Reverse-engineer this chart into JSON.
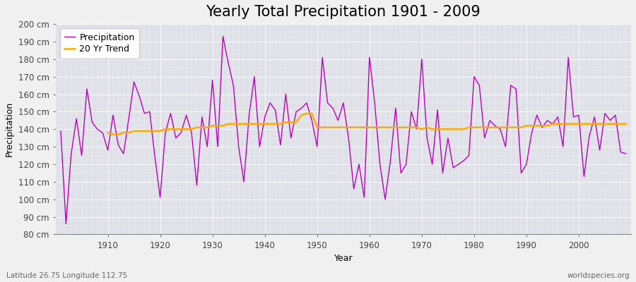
{
  "title": "Yearly Total Precipitation 1901 - 2009",
  "xlabel": "Year",
  "ylabel": "Precipitation",
  "bottom_left_label": "Latitude 26.75 Longitude 112.75",
  "bottom_right_label": "worldspecies.org",
  "ylim": [
    80,
    200
  ],
  "ytick_step": 10,
  "years": [
    1901,
    1902,
    1903,
    1904,
    1905,
    1906,
    1907,
    1908,
    1909,
    1910,
    1911,
    1912,
    1913,
    1914,
    1915,
    1916,
    1917,
    1918,
    1919,
    1920,
    1921,
    1922,
    1923,
    1924,
    1925,
    1926,
    1927,
    1928,
    1929,
    1930,
    1931,
    1932,
    1933,
    1934,
    1935,
    1936,
    1937,
    1938,
    1939,
    1940,
    1941,
    1942,
    1943,
    1944,
    1945,
    1946,
    1947,
    1948,
    1949,
    1950,
    1951,
    1952,
    1953,
    1954,
    1955,
    1956,
    1957,
    1958,
    1959,
    1960,
    1961,
    1962,
    1963,
    1964,
    1965,
    1966,
    1967,
    1968,
    1969,
    1970,
    1971,
    1972,
    1973,
    1974,
    1975,
    1976,
    1977,
    1978,
    1979,
    1980,
    1981,
    1982,
    1983,
    1984,
    1985,
    1986,
    1987,
    1988,
    1989,
    1990,
    1991,
    1992,
    1993,
    1994,
    1995,
    1996,
    1997,
    1998,
    1999,
    2000,
    2001,
    2002,
    2003,
    2004,
    2005,
    2006,
    2007,
    2008,
    2009
  ],
  "precip": [
    139,
    86,
    126,
    146,
    125,
    163,
    144,
    140,
    138,
    128,
    148,
    131,
    126,
    146,
    167,
    159,
    149,
    150,
    124,
    101,
    138,
    149,
    135,
    138,
    148,
    138,
    108,
    147,
    130,
    168,
    130,
    193,
    178,
    165,
    130,
    110,
    148,
    170,
    130,
    147,
    155,
    151,
    131,
    160,
    135,
    150,
    152,
    155,
    145,
    130,
    181,
    155,
    152,
    145,
    155,
    135,
    106,
    120,
    101,
    181,
    155,
    120,
    100,
    122,
    152,
    115,
    120,
    150,
    140,
    180,
    135,
    120,
    151,
    115,
    135,
    118,
    120,
    122,
    125,
    170,
    165,
    135,
    145,
    142,
    140,
    130,
    165,
    163,
    115,
    120,
    138,
    148,
    141,
    145,
    143,
    147,
    130,
    181,
    147,
    148,
    113,
    136,
    147,
    128,
    149,
    145,
    148,
    127,
    126
  ],
  "trend_years": [
    1910,
    1911,
    1912,
    1913,
    1914,
    1915,
    1916,
    1917,
    1918,
    1919,
    1920,
    1921,
    1922,
    1923,
    1924,
    1925,
    1926,
    1927,
    1928,
    1929,
    1930,
    1931,
    1932,
    1933,
    1934,
    1935,
    1936,
    1937,
    1938,
    1939,
    1940,
    1941,
    1942,
    1943,
    1944,
    1945,
    1946,
    1947,
    1948,
    1949,
    1950,
    1951,
    1952,
    1953,
    1954,
    1955,
    1956,
    1957,
    1958,
    1959,
    1960,
    1961,
    1962,
    1963,
    1964,
    1965,
    1966,
    1967,
    1968,
    1969,
    1970,
    1971,
    1972,
    1973,
    1974,
    1975,
    1976,
    1977,
    1978,
    1979,
    1980,
    1981,
    1982,
    1983,
    1984,
    1985,
    1986,
    1987,
    1988,
    1989,
    1990,
    1991,
    1992,
    1993,
    1994,
    1995,
    1996,
    1997,
    1998,
    1999,
    2000,
    2001,
    2002,
    2003,
    2004,
    2005,
    2006,
    2007,
    2008,
    2009
  ],
  "trend": [
    138,
    137,
    137,
    138,
    138,
    139,
    139,
    139,
    139,
    139,
    139,
    140,
    140,
    140,
    140,
    140,
    140,
    141,
    141,
    141,
    142,
    142,
    142,
    143,
    143,
    143,
    143,
    143,
    143,
    143,
    143,
    143,
    143,
    143,
    144,
    144,
    144,
    148,
    149,
    149,
    141,
    141,
    141,
    141,
    141,
    141,
    141,
    141,
    141,
    141,
    141,
    141,
    141,
    141,
    141,
    141,
    141,
    141,
    141,
    141,
    140,
    141,
    140,
    140,
    140,
    140,
    140,
    140,
    140,
    141,
    141,
    141,
    141,
    141,
    141,
    141,
    141,
    141,
    141,
    141,
    142,
    142,
    142,
    142,
    142,
    143,
    143,
    143,
    143,
    143,
    143,
    143,
    143,
    143,
    143,
    143,
    143,
    143,
    143,
    143
  ],
  "precip_color": "#bb00bb",
  "trend_color": "#ffaa00",
  "background_color": "#f0f0f0",
  "plot_bg_color": "#e0e0e8",
  "grid_color": "#ffffff",
  "title_fontsize": 15,
  "label_fontsize": 9,
  "tick_fontsize": 8.5,
  "xticks": [
    1910,
    1920,
    1930,
    1940,
    1950,
    1960,
    1970,
    1980,
    1990,
    2000
  ]
}
